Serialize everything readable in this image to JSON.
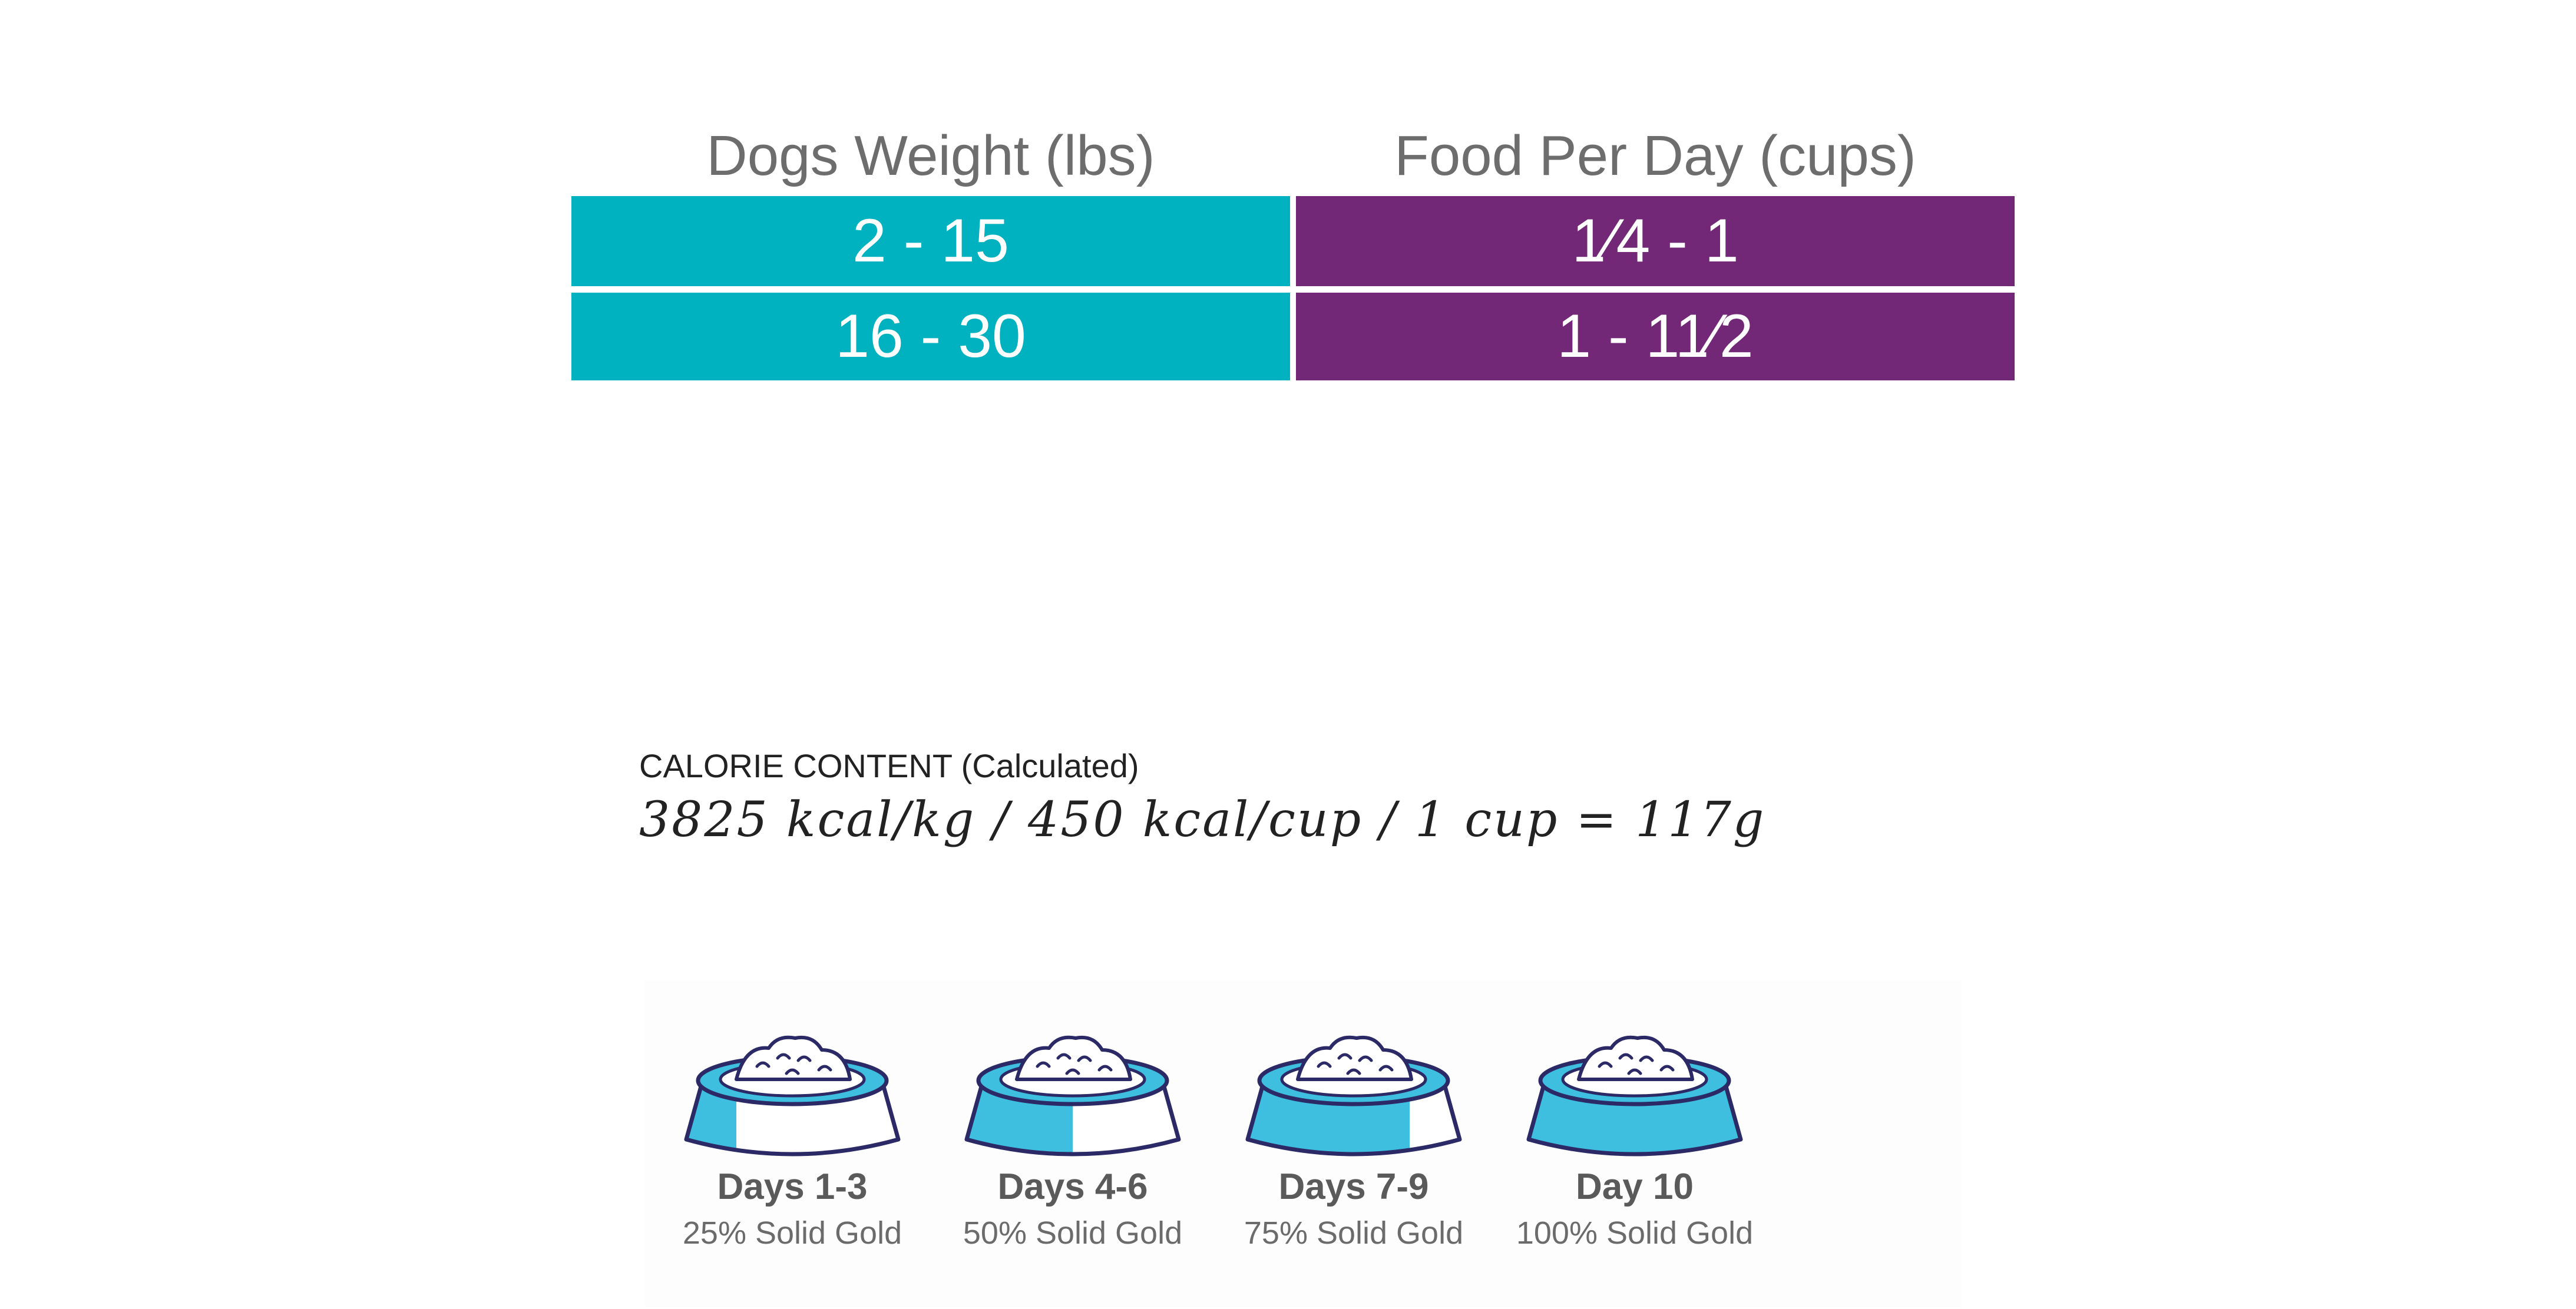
{
  "feeding_table": {
    "headers": [
      "Dogs Weight (lbs)",
      "Food Per Day (cups)"
    ],
    "rows": [
      {
        "weight": "2 - 15",
        "food": "1⁄4 - 1"
      },
      {
        "weight": "16 - 30",
        "food": "1  - 11⁄2"
      }
    ]
  },
  "calorie": {
    "label": "CALORIE CONTENT (Calculated)",
    "value": "3825 kcal/kg / 450 kcal/cup / 1 cup = 117g"
  },
  "transition": {
    "stages": [
      {
        "day": "Days 1-3",
        "mix": "25% Solid Gold",
        "fill_fraction": 0.25
      },
      {
        "day": "Days 4-6",
        "mix": "50% Solid Gold",
        "fill_fraction": 0.5
      },
      {
        "day": "Days 7-9",
        "mix": "75% Solid Gold",
        "fill_fraction": 0.75
      },
      {
        "day": "Day 10",
        "mix": "100% Solid Gold",
        "fill_fraction": 1.0
      }
    ],
    "colors": {
      "fill": "#3ebfe0",
      "outline": "#2b2a66"
    }
  },
  "colors": {
    "weight_col": "#00b2bf",
    "food_col": "#722877",
    "header_text": "#6d6d6d"
  }
}
